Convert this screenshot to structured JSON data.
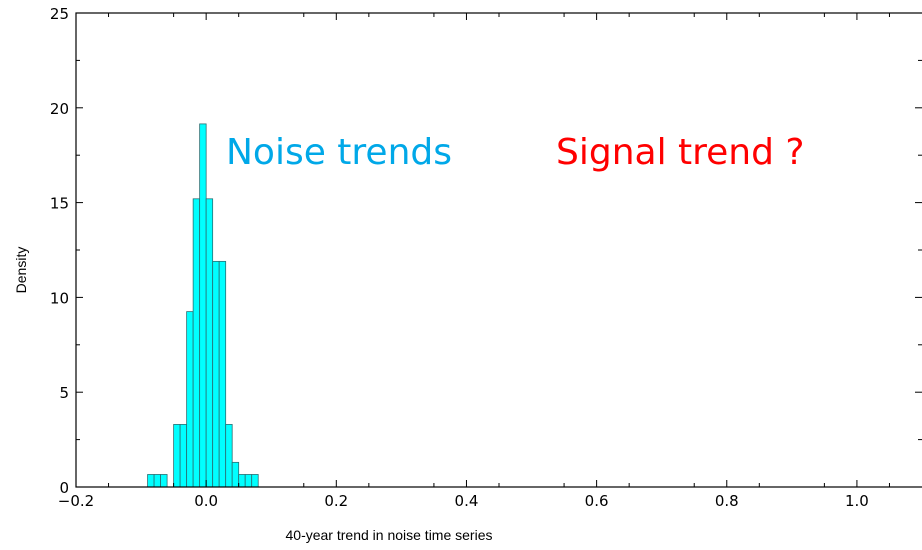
{
  "chart_data": {
    "type": "bar",
    "xlabel": "40-year trend in noise time series",
    "ylabel": "Density",
    "xlim": [
      -0.2,
      1.1
    ],
    "ylim": [
      0,
      25
    ],
    "x_ticks": [
      -0.2,
      0.0,
      0.2,
      0.4,
      0.6,
      0.8,
      1.0
    ],
    "x_tick_labels": [
      "−0.2",
      "0.0",
      "0.2",
      "0.4",
      "0.6",
      "0.8",
      "1.0"
    ],
    "y_ticks": [
      0,
      5,
      10,
      15,
      20,
      25
    ],
    "y_tick_labels": [
      "0",
      "5",
      "10",
      "15",
      "20",
      "25"
    ],
    "bin_width": 0.01,
    "bins": [
      {
        "x0": -0.09,
        "density": 0.66
      },
      {
        "x0": -0.08,
        "density": 0.66
      },
      {
        "x0": -0.07,
        "density": 0.66
      },
      {
        "x0": -0.05,
        "density": 3.3
      },
      {
        "x0": -0.04,
        "density": 3.3
      },
      {
        "x0": -0.03,
        "density": 9.25
      },
      {
        "x0": -0.02,
        "density": 15.2
      },
      {
        "x0": -0.01,
        "density": 19.15
      },
      {
        "x0": 0.0,
        "density": 15.2
      },
      {
        "x0": 0.01,
        "density": 11.9
      },
      {
        "x0": 0.02,
        "density": 11.9
      },
      {
        "x0": 0.03,
        "density": 3.3
      },
      {
        "x0": 0.04,
        "density": 1.3
      },
      {
        "x0": 0.05,
        "density": 0.66
      },
      {
        "x0": 0.06,
        "density": 0.66
      },
      {
        "x0": 0.07,
        "density": 0.66
      }
    ],
    "bar_color": "#00ffff",
    "bar_edge_color": "#2a6f73",
    "annotations": [
      {
        "text": "Noise trends",
        "color": "#00a8e8"
      },
      {
        "text": "Signal trend ?",
        "color": "#ff0000"
      }
    ],
    "grid": false
  }
}
